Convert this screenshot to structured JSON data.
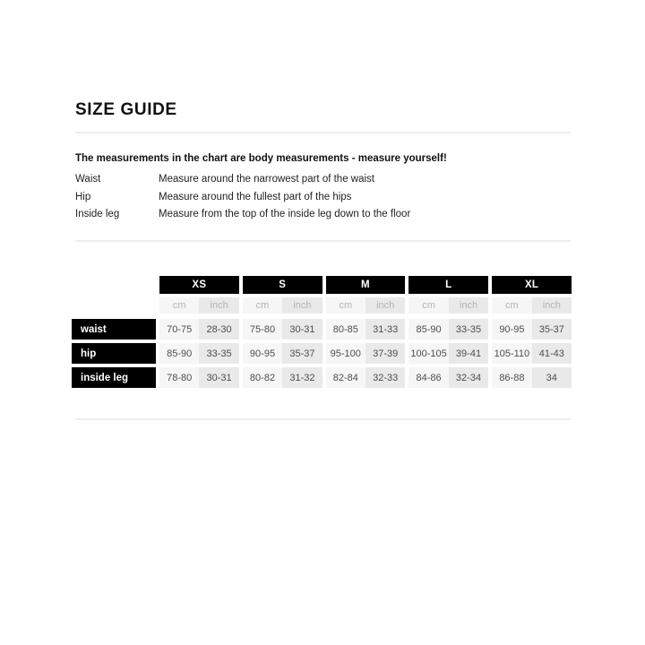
{
  "page": {
    "title": "SIZE GUIDE",
    "intro": "The measurements in the chart are body measurements - measure yourself!",
    "definitions": [
      {
        "term": "Waist",
        "description": "Measure around the narrowest part of the waist"
      },
      {
        "term": "Hip",
        "description": "Measure around the fullest part of the hips"
      },
      {
        "term": "Inside leg",
        "description": "Measure from the top of the inside leg down to the floor"
      }
    ]
  },
  "size_table": {
    "sizes": [
      "XS",
      "S",
      "M",
      "L",
      "XL"
    ],
    "unit_headers": [
      "cm",
      "inch"
    ],
    "rows": [
      {
        "label": "waist",
        "values": [
          [
            "70-75",
            "28-30"
          ],
          [
            "75-80",
            "30-31"
          ],
          [
            "80-85",
            "31-33"
          ],
          [
            "85-90",
            "33-35"
          ],
          [
            "90-95",
            "35-37"
          ]
        ]
      },
      {
        "label": "hip",
        "values": [
          [
            "85-90",
            "33-35"
          ],
          [
            "90-95",
            "35-37"
          ],
          [
            "95-100",
            "37-39"
          ],
          [
            "100-105",
            "39-41"
          ],
          [
            "105-110",
            "41-43"
          ]
        ]
      },
      {
        "label": "inside leg",
        "values": [
          [
            "78-80",
            "30-31"
          ],
          [
            "80-82",
            "31-32"
          ],
          [
            "82-84",
            "32-33"
          ],
          [
            "84-86",
            "32-34"
          ],
          [
            "86-88",
            "34"
          ]
        ]
      }
    ]
  },
  "colors": {
    "header_bg": "#000000",
    "header_text": "#ffffff",
    "cm_cell_bg": "#f6f6f6",
    "inch_cell_bg": "#e9e9e9",
    "unit_text": "#b3b3b3",
    "value_text": "#4d4d4d",
    "divider": "#ededed"
  }
}
